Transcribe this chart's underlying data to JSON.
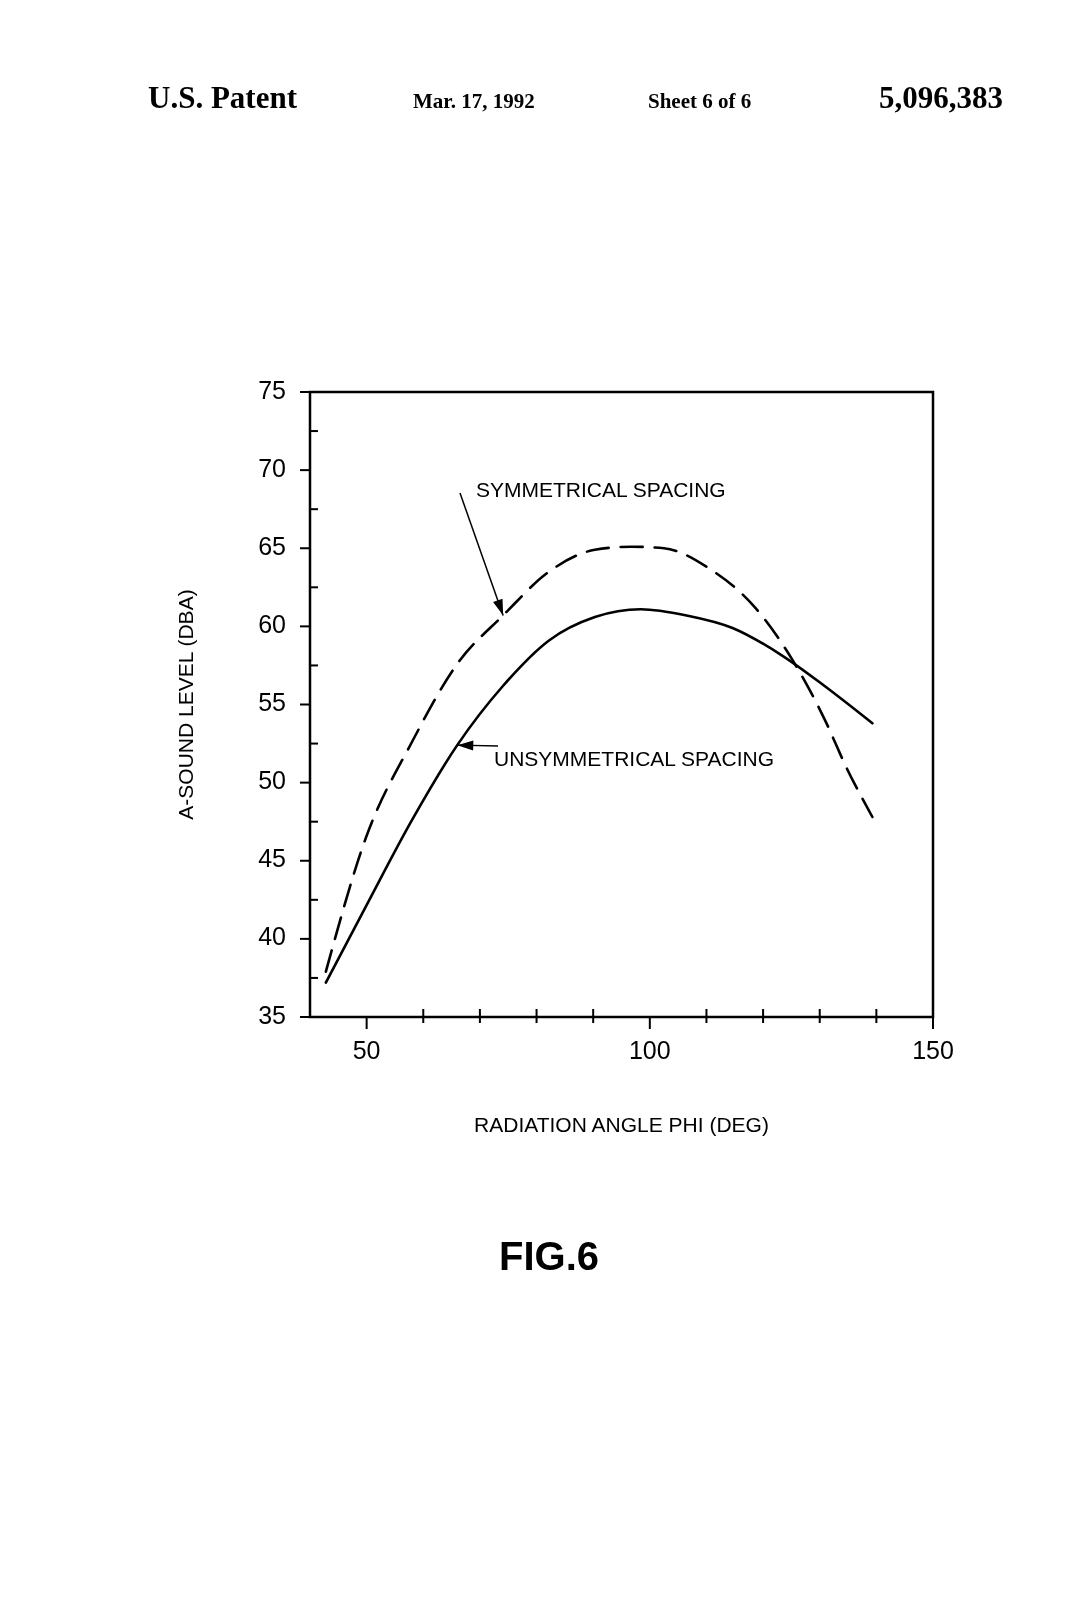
{
  "chart_data": {
    "type": "line",
    "title": "FIG.6",
    "annotations": [
      "U.S. Patent",
      "Mar. 17, 1992",
      "Sheet 6 of 6",
      "5,096,383"
    ],
    "xlabel": "RADIATION ANGLE PHI (DEG)",
    "ylabel": "A-SOUND LEVEL (DBA)",
    "xlim": [
      40,
      150
    ],
    "ylim": [
      35,
      75
    ],
    "xticks": [
      50,
      {
        "value": 60,
        "label": null
      },
      {
        "value": 70,
        "label": null
      },
      {
        "value": 80,
        "label": null
      },
      {
        "value": 90,
        "label": null
      },
      {
        "value": 100,
        "label": "100"
      },
      {
        "value": 110,
        "label": null
      },
      {
        "value": 120,
        "label": null
      },
      {
        "value": 130,
        "label": null
      },
      {
        "value": 140,
        "label": null
      },
      150
    ],
    "yticks": [
      35,
      {
        "value": 37.5,
        "label": null
      },
      40,
      {
        "value": 42.5,
        "label": null
      },
      45,
      {
        "value": 47.5,
        "label": null
      },
      50,
      {
        "value": 52.5,
        "label": null
      },
      55,
      {
        "value": 57.5,
        "label": null
      },
      60,
      {
        "value": 62.5,
        "label": null
      },
      65,
      {
        "value": 67.5,
        "label": null
      },
      70,
      {
        "value": 72.5,
        "label": null
      },
      75
    ],
    "grid": false,
    "marker": "none",
    "series": [
      {
        "name": "SYMMETRICAL SPACING",
        "color": "#000000",
        "line_style": "dashed",
        "x": [
          42.8,
          49.9,
          58,
          66,
          74.1,
          82.2,
          90.3,
          96.8,
          102.5,
          110.5,
          118.6,
          125.1,
          130.8,
          134.8,
          139.3
        ],
        "values": [
          37.9,
          46.5,
          52.6,
          57.6,
          60.7,
          63.5,
          64.9,
          65.1,
          65.0,
          63.7,
          61.2,
          57.9,
          54.1,
          50.9,
          47.8
        ]
      },
      {
        "name": "UNSYMMETRICAL SPACING",
        "color": "#000000",
        "line_style": "solid",
        "x": [
          42.8,
          49.9,
          58,
          66,
          74.1,
          82.2,
          90.3,
          98.4,
          106.5,
          114.6,
          123.5,
          130.8,
          139.3
        ],
        "values": [
          37.2,
          42.1,
          47.6,
          52.4,
          56.2,
          59.1,
          60.6,
          61.1,
          60.7,
          59.9,
          58.1,
          56.2,
          53.8
        ]
      }
    ]
  }
}
